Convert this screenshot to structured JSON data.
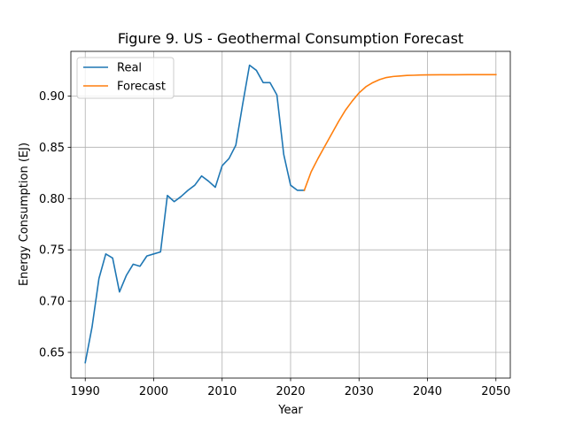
{
  "chart_data": {
    "type": "line",
    "title": "Figure 9. US - Geothermal Consumption Forecast",
    "xlabel": "Year",
    "ylabel": "Energy Consumption (EJ)",
    "xlim": [
      1987.9,
      2052.1
    ],
    "ylim": [
      0.625,
      0.9435
    ],
    "xticks": [
      1990,
      2000,
      2010,
      2020,
      2030,
      2040,
      2050
    ],
    "yticks": [
      0.65,
      0.7,
      0.75,
      0.8,
      0.85,
      0.9
    ],
    "ytick_labels": [
      "0.65",
      "0.70",
      "0.75",
      "0.80",
      "0.85",
      "0.90"
    ],
    "grid": true,
    "legend_position": "upper-left",
    "series": [
      {
        "name": "Real",
        "color": "#1f77b4",
        "x": [
          1990,
          1991,
          1992,
          1993,
          1994,
          1995,
          1996,
          1997,
          1998,
          1999,
          2000,
          2001,
          2002,
          2003,
          2004,
          2005,
          2006,
          2007,
          2008,
          2009,
          2010,
          2011,
          2012,
          2013,
          2014,
          2015,
          2016,
          2017,
          2018,
          2019,
          2020,
          2021,
          2022
        ],
        "values": [
          0.64,
          0.675,
          0.722,
          0.746,
          0.742,
          0.709,
          0.725,
          0.736,
          0.734,
          0.744,
          0.746,
          0.748,
          0.803,
          0.797,
          0.802,
          0.808,
          0.813,
          0.822,
          0.817,
          0.811,
          0.832,
          0.839,
          0.852,
          0.892,
          0.93,
          0.925,
          0.913,
          0.913,
          0.901,
          0.843,
          0.813,
          0.808,
          0.808
        ]
      },
      {
        "name": "Forecast",
        "color": "#ff7f0e",
        "x": [
          2022,
          2023,
          2024,
          2025,
          2026,
          2027,
          2028,
          2029,
          2030,
          2031,
          2032,
          2033,
          2034,
          2035,
          2036,
          2037,
          2038,
          2039,
          2040,
          2042,
          2044,
          2046,
          2048,
          2050
        ],
        "values": [
          0.808,
          0.826,
          0.839,
          0.851,
          0.863,
          0.875,
          0.886,
          0.895,
          0.903,
          0.909,
          0.913,
          0.916,
          0.918,
          0.919,
          0.9195,
          0.92,
          0.9202,
          0.9205,
          0.9206,
          0.9207,
          0.9207,
          0.9208,
          0.9208,
          0.9208
        ]
      }
    ]
  }
}
